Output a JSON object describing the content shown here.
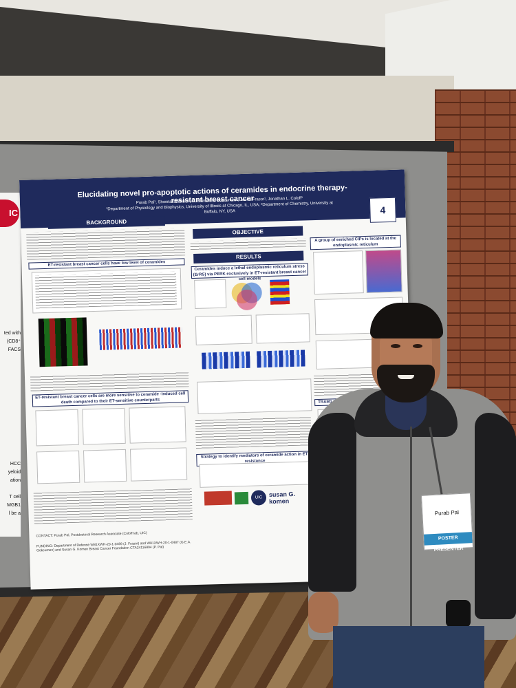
{
  "poster": {
    "title": "Elucidating novel pro-apoptotic actions of ceramides in endocrine therapy-resistant breast cancer",
    "authors": "Purab Pal¹, Shweta Chitkara¹, G. Ekin Atilla Gokcumen², Jonna Frasor¹, Jonathan L. Coloff¹",
    "affiliations": "¹Department of Physiology and Biophysics, University of Illinois at Chicago, IL, USA; ²Department of Chemistry, University at Buffalo, NY, USA",
    "board_number": "4",
    "sections": {
      "background": "BACKGROUND",
      "objective": "OBJECTIVE",
      "results": "RESULTS"
    },
    "subheads": {
      "low_ceramide": "ET-resistant breast cancer cells have low level of ceramides",
      "sensitive": "ET-resistant breast cancer cells are more sensitive to ceramide -induced cell death compared to their ET-sensitive counterparts",
      "er_stress": "Ceramides induce a lethal endoplasmic reticulum stress (ErRS) via PERK exclusively in ET-resistant breast cancer cell models",
      "strategy": "Strategy to identify mediators of ceramide action in ET-resistance",
      "enriched": "A group of enriched CIPs is located at the endoplasmic reticulum",
      "tram1": "TRAM1 knockdown phenocopies ceramide"
    },
    "footer": {
      "contact": "CONTACT: Purab Pal, Postdoctoral Research Associate (Coloff lab, UIC)",
      "funding": "FUNDING: Department of Defense W81XWH-20-1-0489 (J. Frasor) and W81XWH-20-1-0487 (G.E.A. Gokcumen) and Susan G. Komen Breast Cancer Foundation CTA24116894 (P. Pal)",
      "logo_uic": "UIC",
      "logo_komen": "susan G. komen"
    }
  },
  "left_poster": {
    "logo": "IC",
    "fragments": [
      "ted with",
      "(CD8⁺",
      "FACS",
      "HCC",
      "yeloid",
      "ation",
      "T cell",
      "MGB1",
      "l be a"
    ]
  },
  "badge": {
    "name": "Purab Pal",
    "role": "POSTER PRESENTER"
  }
}
